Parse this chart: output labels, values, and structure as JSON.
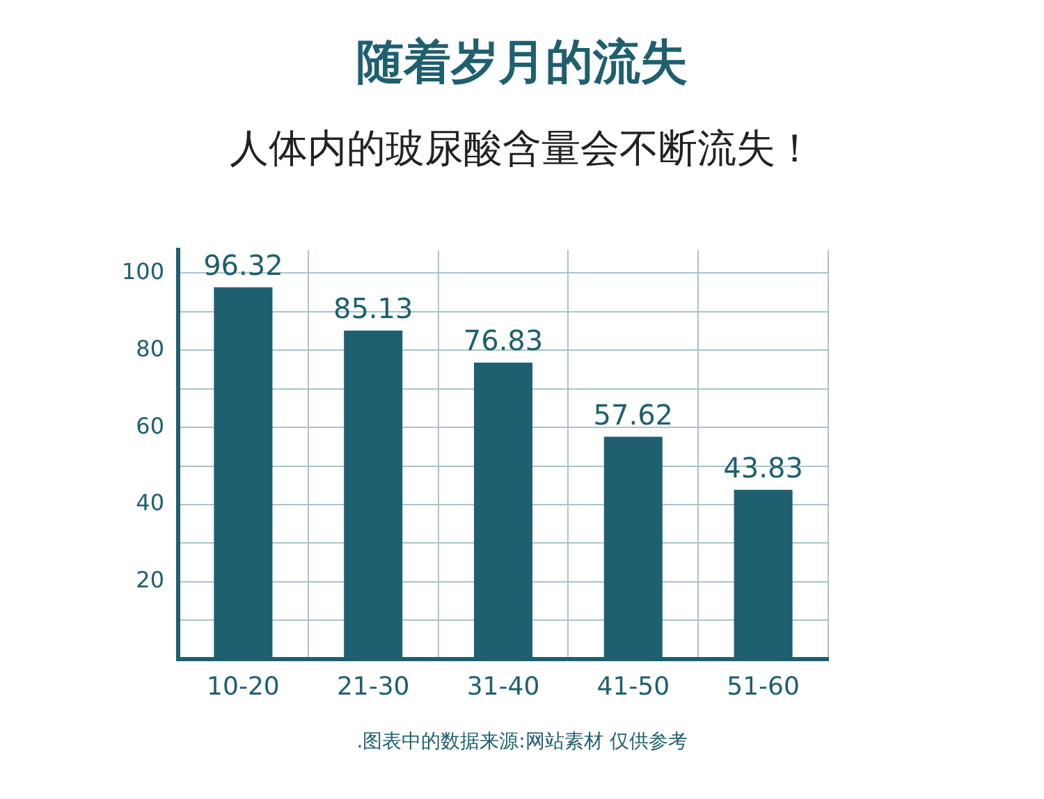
{
  "chart_data": {
    "type": "bar",
    "title": "随着岁月的流失",
    "subtitle": "人体内的玻尿酸含量会不断流失！",
    "categories": [
      "10-20",
      "21-30",
      "31-40",
      "41-50",
      "51-60"
    ],
    "values": [
      96.32,
      85.13,
      76.83,
      57.62,
      43.83
    ],
    "color": "#1f6070",
    "data_labels": true,
    "ylim": [
      0,
      106
    ],
    "yticks": [
      {
        "value": 10,
        "label": null
      },
      20,
      {
        "value": 30,
        "label": null
      },
      40,
      {
        "value": 50,
        "label": null
      },
      60,
      {
        "value": 70,
        "label": null
      },
      80,
      {
        "value": 90,
        "label": null
      },
      100
    ],
    "grid": true,
    "legend": false,
    "annotations": [
      ".图表中的数据来源:网站素材 仅供参考"
    ]
  }
}
